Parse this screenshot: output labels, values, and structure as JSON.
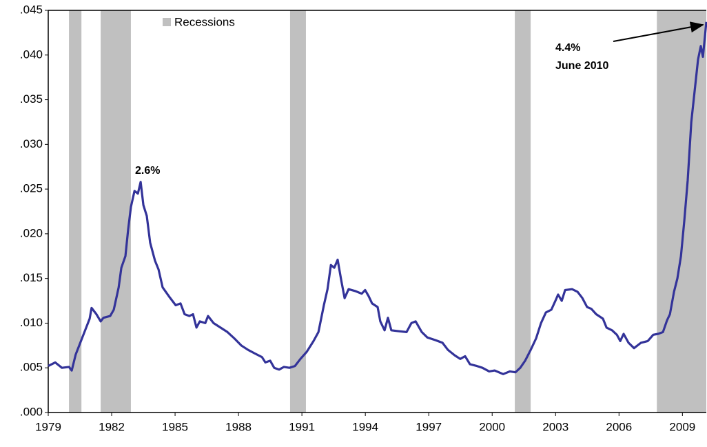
{
  "chart_data": {
    "type": "line",
    "x": [
      1979.0,
      1979.33,
      1979.65,
      1979.98,
      1980.11,
      1980.3,
      1980.63,
      1980.96,
      1981.05,
      1981.28,
      1981.48,
      1981.61,
      1981.93,
      1982.1,
      1982.33,
      1982.46,
      1982.65,
      1982.78,
      1982.91,
      1983.08,
      1983.24,
      1983.37,
      1983.5,
      1983.66,
      1983.82,
      1984.05,
      1984.22,
      1984.41,
      1984.71,
      1985.03,
      1985.26,
      1985.45,
      1985.68,
      1985.85,
      1986.01,
      1986.17,
      1986.43,
      1986.56,
      1986.82,
      1987.15,
      1987.48,
      1987.8,
      1988.13,
      1988.46,
      1988.78,
      1989.11,
      1989.27,
      1989.5,
      1989.69,
      1989.92,
      1990.15,
      1990.41,
      1990.67,
      1990.93,
      1991.23,
      1991.55,
      1991.78,
      1992.04,
      1992.21,
      1992.37,
      1992.53,
      1992.69,
      1992.86,
      1993.02,
      1993.21,
      1993.51,
      1993.83,
      1993.99,
      1994.16,
      1994.32,
      1994.58,
      1994.71,
      1994.91,
      1995.07,
      1995.23,
      1995.56,
      1995.95,
      1996.18,
      1996.38,
      1996.67,
      1996.93,
      1997.32,
      1997.65,
      1997.91,
      1998.23,
      1998.49,
      1998.72,
      1998.95,
      1999.28,
      1999.54,
      1999.86,
      2000.12,
      2000.52,
      2000.84,
      2001.1,
      2001.33,
      2001.56,
      2001.82,
      2002.08,
      2002.31,
      2002.54,
      2002.8,
      2002.99,
      2003.12,
      2003.29,
      2003.45,
      2003.78,
      2004.04,
      2004.27,
      2004.49,
      2004.69,
      2004.92,
      2005.24,
      2005.41,
      2005.67,
      2005.9,
      2006.06,
      2006.22,
      2006.45,
      2006.71,
      2007.04,
      2007.36,
      2007.62,
      2007.85,
      2008.08,
      2008.27,
      2008.41,
      2008.6,
      2008.76,
      2008.93,
      2009.09,
      2009.25,
      2009.42,
      2009.58,
      2009.74,
      2009.87,
      2009.97,
      2010.13
    ],
    "series": [
      {
        "color": "#333399",
        "values": [
          0.0052,
          0.0056,
          0.005,
          0.0051,
          0.0047,
          0.0065,
          0.0085,
          0.0105,
          0.0117,
          0.011,
          0.0102,
          0.0106,
          0.0108,
          0.0115,
          0.014,
          0.0162,
          0.0175,
          0.0205,
          0.023,
          0.0248,
          0.0245,
          0.0258,
          0.0232,
          0.022,
          0.019,
          0.017,
          0.016,
          0.014,
          0.013,
          0.012,
          0.0122,
          0.011,
          0.0108,
          0.011,
          0.0095,
          0.0102,
          0.01,
          0.0108,
          0.01,
          0.0095,
          0.009,
          0.0083,
          0.0075,
          0.007,
          0.0066,
          0.0062,
          0.0056,
          0.0058,
          0.005,
          0.0048,
          0.0051,
          0.005,
          0.0052,
          0.006,
          0.0068,
          0.008,
          0.009,
          0.012,
          0.0138,
          0.0165,
          0.0162,
          0.0171,
          0.0148,
          0.0128,
          0.0138,
          0.0136,
          0.0133,
          0.0137,
          0.013,
          0.0122,
          0.0118,
          0.0102,
          0.0092,
          0.0106,
          0.0092,
          0.0091,
          0.009,
          0.01,
          0.0102,
          0.009,
          0.0084,
          0.0081,
          0.0078,
          0.007,
          0.0064,
          0.006,
          0.0063,
          0.0054,
          0.0052,
          0.005,
          0.0046,
          0.0047,
          0.0043,
          0.0046,
          0.0045,
          0.005,
          0.0058,
          0.007,
          0.0083,
          0.01,
          0.0112,
          0.0115,
          0.0125,
          0.0132,
          0.0125,
          0.0137,
          0.0138,
          0.0135,
          0.0128,
          0.0118,
          0.0116,
          0.011,
          0.0105,
          0.0095,
          0.0092,
          0.0087,
          0.008,
          0.0088,
          0.0078,
          0.0072,
          0.0078,
          0.008,
          0.0087,
          0.0088,
          0.009,
          0.0103,
          0.011,
          0.0135,
          0.015,
          0.0175,
          0.0215,
          0.026,
          0.0325,
          0.036,
          0.0395,
          0.041,
          0.0398,
          0.0437
        ]
      }
    ],
    "recessions": [
      [
        1979.98,
        1980.57
      ],
      [
        1981.48,
        1982.91
      ],
      [
        1990.44,
        1991.19
      ],
      [
        2001.07,
        2001.82
      ],
      [
        2007.79,
        2010.13
      ]
    ],
    "recession_color": "#c0c0c0",
    "legend": "Recessions",
    "annotations": [
      "2.6%",
      "4.4%",
      "June 2010"
    ],
    "xlim": [
      1979,
      2010.13
    ],
    "xticks": [
      1979,
      1982,
      1985,
      1988,
      1991,
      1994,
      1997,
      2000,
      2003,
      2006,
      2009
    ],
    "ylim": [
      0,
      0.045
    ],
    "yticks": [
      {
        "value": 0,
        "label": ".000"
      },
      {
        "value": 0.005,
        "label": ".005"
      },
      {
        "value": 0.01,
        "label": ".010"
      },
      {
        "value": 0.015,
        "label": ".015"
      },
      {
        "value": 0.02,
        "label": ".020"
      },
      {
        "value": 0.025,
        "label": ".025"
      },
      {
        "value": 0.03,
        "label": ".030"
      },
      {
        "value": 0.035,
        "label": ".035"
      },
      {
        "value": 0.04,
        "label": ".040"
      },
      {
        "value": 0.045,
        "label": ".045"
      }
    ]
  }
}
